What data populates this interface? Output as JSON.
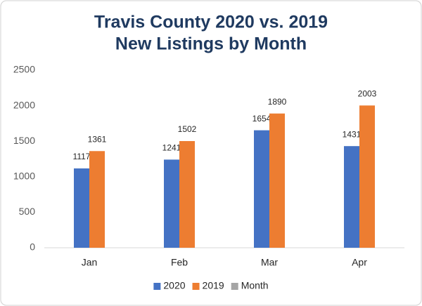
{
  "chart_data": {
    "type": "bar",
    "title": "Travis County 2020 vs. 2019",
    "subtitle": "New Listings by Month",
    "categories": [
      "Jan",
      "Feb",
      "Mar",
      "Apr"
    ],
    "series": [
      {
        "name": "2020",
        "color": "#4472c4",
        "values": [
          1117,
          1241,
          1654,
          1431
        ]
      },
      {
        "name": "2019",
        "color": "#ed7d31",
        "values": [
          1361,
          1502,
          1890,
          2003
        ]
      },
      {
        "name": "Month",
        "color": "#a5a5a5",
        "values": [
          null,
          null,
          null,
          null
        ]
      }
    ],
    "ylim": [
      0,
      2500
    ],
    "yticks": [
      0,
      500,
      1000,
      1500,
      2000,
      2500
    ],
    "grid": false,
    "legend": "bottom"
  }
}
